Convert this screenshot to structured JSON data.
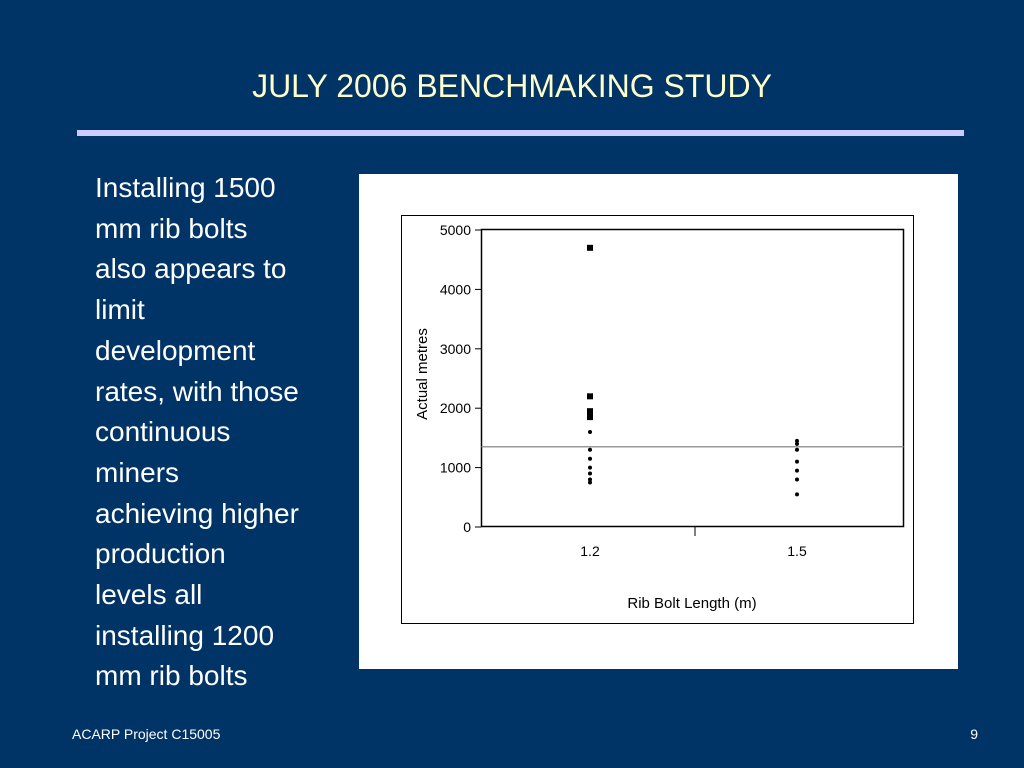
{
  "slide": {
    "title": "JULY 2006 BENCHMAKING STUDY",
    "body_lines": [
      "Installing 1500",
      "mm rib bolts",
      "also appears to",
      "limit",
      "development",
      "rates, with those",
      "continuous",
      "miners",
      "achieving higher",
      "production",
      "levels all",
      "installing 1200",
      "mm rib bolts"
    ],
    "footer_left": "ACARP Project C15005",
    "page_number": "9"
  },
  "colors": {
    "background": "#003366",
    "title": "#ffffcc",
    "rule": "#ccccff",
    "mean_line": "#999999"
  },
  "chart_data": {
    "type": "scatter",
    "xlabel": "Rib Bolt Length (m)",
    "ylabel": "Actual metres",
    "categories": [
      "1.2",
      "1.5"
    ],
    "ylim": [
      0,
      5000
    ],
    "yticks": [
      "0",
      "1000",
      "2000",
      "3000",
      "4000",
      "5000"
    ],
    "mean_line": 1350,
    "grid": false,
    "series": [
      {
        "category": "1.2",
        "values": [
          4700,
          2200,
          1950,
          1900,
          1850,
          1600,
          1300,
          1150,
          1000,
          900,
          800,
          750
        ]
      },
      {
        "category": "1.5",
        "values": [
          1450,
          1400,
          1300,
          1100,
          950,
          800,
          550
        ]
      }
    ]
  }
}
